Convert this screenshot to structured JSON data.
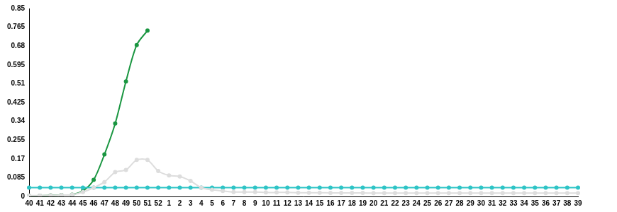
{
  "chart_data": {
    "type": "line",
    "categories": [
      "40",
      "41",
      "42",
      "43",
      "44",
      "45",
      "46",
      "47",
      "48",
      "49",
      "50",
      "51",
      "52",
      "1",
      "2",
      "3",
      "4",
      "5",
      "6",
      "7",
      "8",
      "9",
      "10",
      "11",
      "12",
      "13",
      "14",
      "15",
      "16",
      "17",
      "18",
      "19",
      "20",
      "21",
      "22",
      "23",
      "24",
      "25",
      "26",
      "27",
      "28",
      "29",
      "30",
      "31",
      "32",
      "33",
      "34",
      "35",
      "36",
      "37",
      "38",
      "39"
    ],
    "series": [
      {
        "color": "#dddddd",
        "marker": "circle",
        "values": [
          0.004,
          0.004,
          0.005,
          0.006,
          0.008,
          0.02,
          0.04,
          0.065,
          0.11,
          0.12,
          0.165,
          0.165,
          0.115,
          0.095,
          0.09,
          0.07,
          0.04,
          0.03,
          0.025,
          0.02,
          0.02,
          0.02,
          0.018,
          0.018,
          0.018,
          0.017,
          0.017,
          0.017,
          0.016,
          0.016,
          0.016,
          0.016,
          0.015,
          0.015,
          0.015,
          0.015,
          0.015,
          0.015,
          0.015,
          0.015,
          0.015,
          0.015,
          0.015,
          0.015,
          0.015,
          0.015,
          0.015,
          0.015,
          0.015,
          0.015,
          0.015,
          0.015
        ]
      },
      {
        "color": "#2ec4c6",
        "marker": "circle",
        "values": [
          0.04,
          0.04,
          0.04,
          0.04,
          0.04,
          0.04,
          0.04,
          0.04,
          0.04,
          0.04,
          0.04,
          0.04,
          0.04,
          0.04,
          0.04,
          0.04,
          0.04,
          0.04,
          0.04,
          0.04,
          0.04,
          0.04,
          0.04,
          0.04,
          0.04,
          0.04,
          0.04,
          0.04,
          0.04,
          0.04,
          0.04,
          0.04,
          0.04,
          0.04,
          0.04,
          0.04,
          0.04,
          0.04,
          0.04,
          0.04,
          0.04,
          0.04,
          0.04,
          0.04,
          0.04,
          0.04,
          0.04,
          0.04,
          0.04,
          0.04,
          0.04,
          0.04
        ]
      },
      {
        "color": "#1a9641",
        "marker": "circle",
        "values": [
          0.002,
          0.003,
          0.005,
          0.006,
          0.008,
          0.025,
          0.075,
          0.19,
          0.33,
          0.52,
          0.685,
          0.75,
          null,
          null,
          null,
          null,
          null,
          null,
          null,
          null,
          null,
          null,
          null,
          null,
          null,
          null,
          null,
          null,
          null,
          null,
          null,
          null,
          null,
          null,
          null,
          null,
          null,
          null,
          null,
          null,
          null,
          null,
          null,
          null,
          null,
          null,
          null,
          null,
          null,
          null,
          null,
          null
        ]
      }
    ],
    "ylim": [
      0,
      0.85
    ],
    "yticks": [
      0,
      0.085,
      0.17,
      0.255,
      0.34,
      0.425,
      0.51,
      0.595,
      0.68,
      0.765,
      0.85
    ],
    "grid": false
  }
}
